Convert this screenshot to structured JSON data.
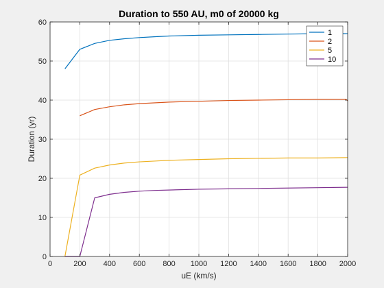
{
  "chart_data": {
    "type": "line",
    "title": "Duration to 550 AU, m0 of 20000 kg",
    "xlabel": "uE (km/s)",
    "ylabel": "Duration (yr)",
    "xlim": [
      0,
      2000
    ],
    "ylim": [
      0,
      60
    ],
    "xticks": [
      0,
      200,
      400,
      600,
      800,
      1000,
      1200,
      1400,
      1600,
      1800,
      2000
    ],
    "yticks": [
      0,
      10,
      20,
      30,
      40,
      50,
      60
    ],
    "grid": true,
    "legend_position": "top-right",
    "series": [
      {
        "name": "1",
        "color": "#0072BD",
        "x": [
          100,
          200,
          300,
          400,
          500,
          600,
          700,
          800,
          1000,
          1200,
          1400,
          1600,
          1800,
          2000
        ],
        "y": [
          48.0,
          53.0,
          54.5,
          55.3,
          55.7,
          56.0,
          56.2,
          56.4,
          56.6,
          56.7,
          56.8,
          56.9,
          57.0,
          57.0
        ]
      },
      {
        "name": "2",
        "color": "#D95319",
        "x": [
          200,
          300,
          400,
          500,
          600,
          700,
          800,
          1000,
          1200,
          1400,
          1600,
          1800,
          1990,
          2000
        ],
        "y": [
          36.0,
          37.6,
          38.3,
          38.8,
          39.1,
          39.3,
          39.5,
          39.7,
          39.9,
          40.0,
          40.1,
          40.2,
          40.2,
          39.8
        ]
      },
      {
        "name": "5",
        "color": "#EDB120",
        "x": [
          100,
          200,
          300,
          400,
          500,
          600,
          700,
          800,
          1000,
          1200,
          1400,
          1600,
          1800,
          2000
        ],
        "y": [
          0,
          20.8,
          22.6,
          23.4,
          23.9,
          24.2,
          24.4,
          24.6,
          24.8,
          25.0,
          25.1,
          25.2,
          25.2,
          25.3
        ]
      },
      {
        "name": "10",
        "color": "#7E2F8E",
        "x": [
          100,
          200,
          300,
          400,
          500,
          600,
          700,
          800,
          1000,
          1200,
          1400,
          1600,
          1800,
          2000
        ],
        "y": [
          0,
          0,
          15.0,
          15.9,
          16.4,
          16.7,
          16.9,
          17.0,
          17.2,
          17.3,
          17.4,
          17.5,
          17.6,
          17.7
        ]
      }
    ]
  }
}
